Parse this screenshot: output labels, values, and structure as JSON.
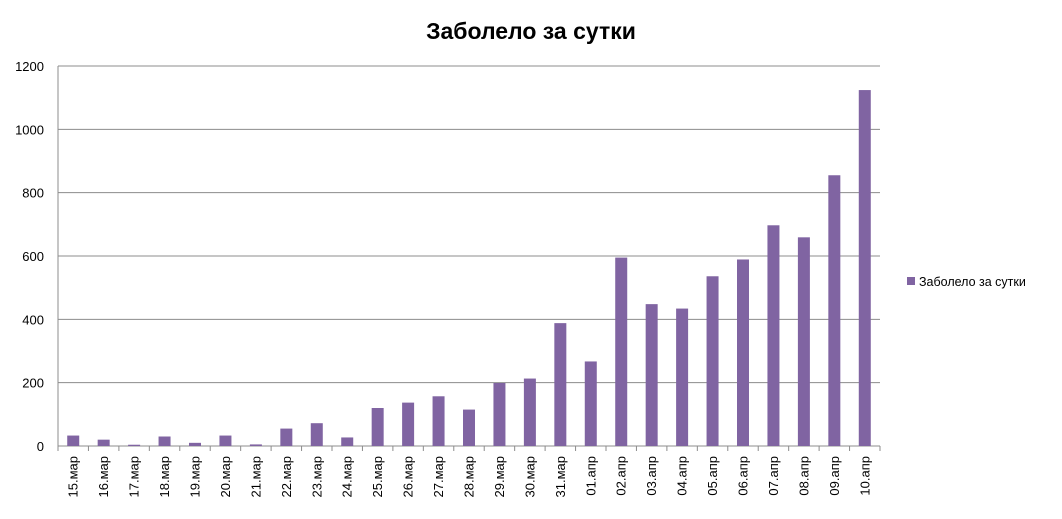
{
  "chart_data": {
    "type": "bar",
    "title": "Заболело за сутки",
    "xlabel": "",
    "ylabel": "",
    "ylim": [
      0,
      1200
    ],
    "yticks": [
      0,
      200,
      400,
      600,
      800,
      1000,
      1200
    ],
    "grid": true,
    "legend_position": "right",
    "categories": [
      "15.мар",
      "16.мар",
      "17.мар",
      "18.мар",
      "19.мар",
      "20.мар",
      "21.мар",
      "22.мар",
      "23.мар",
      "24.мар",
      "25.мар",
      "26.мар",
      "27.мар",
      "28.мар",
      "29.мар",
      "30.мар",
      "31.мар",
      "01.апр",
      "02.апр",
      "03.апр",
      "04.апр",
      "05.апр",
      "06.апр",
      "07.апр",
      "08.апр",
      "09.апр",
      "10.апр"
    ],
    "series": [
      {
        "name": "Заболело за сутки",
        "color": "#8064a2",
        "values": [
          33,
          20,
          4,
          30,
          10,
          33,
          5,
          55,
          72,
          27,
          120,
          137,
          157,
          115,
          199,
          213,
          388,
          267,
          595,
          448,
          434,
          536,
          589,
          697,
          659,
          855,
          1124
        ]
      }
    ]
  }
}
